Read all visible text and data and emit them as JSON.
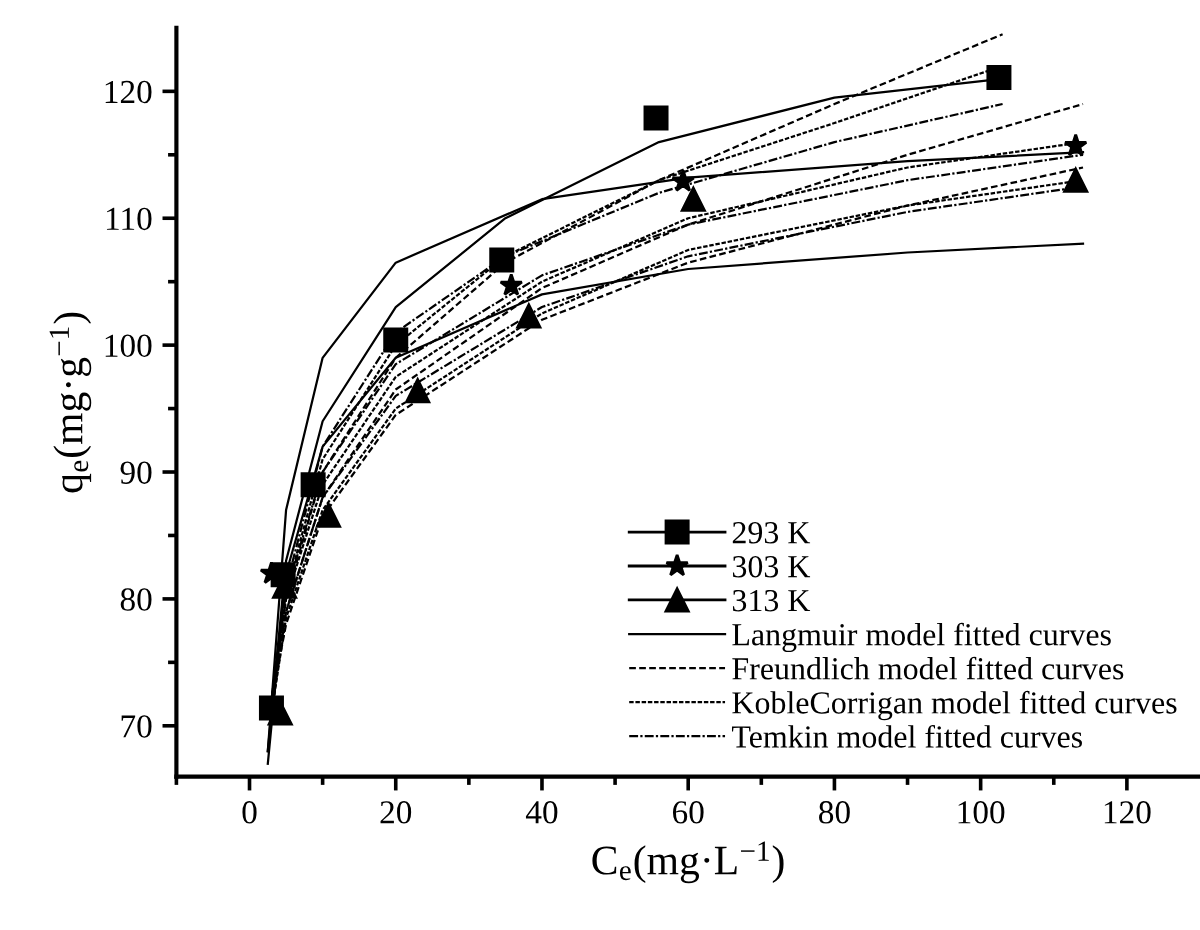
{
  "chart_data": {
    "type": "scatter",
    "xlabel": "C$_{e}$(mg·L$^{−1}$)",
    "ylabel": "q$_{e}$(mg·g$^{−1}$)",
    "xlim": [
      -10,
      130
    ],
    "ylim": [
      66,
      125
    ],
    "xticks": [
      {
        "value": -10,
        "label": null
      },
      0,
      {
        "value": 10,
        "label": null
      },
      20,
      {
        "value": 30,
        "label": null
      },
      40,
      {
        "value": 50,
        "label": null
      },
      60,
      {
        "value": 70,
        "label": null
      },
      80,
      {
        "value": 90,
        "label": null
      },
      100,
      {
        "value": 110,
        "label": null
      },
      120
    ],
    "yticks": [
      70,
      {
        "value": 75,
        "label": null
      },
      80,
      {
        "value": 85,
        "label": null
      },
      90,
      {
        "value": 95,
        "label": null
      },
      100,
      {
        "value": 105,
        "label": null
      },
      110,
      {
        "value": 115,
        "label": null
      },
      120
    ],
    "grid": false,
    "legend": "lower right",
    "series": [
      {
        "name": "293 K",
        "marker": "square",
        "color": "#000000",
        "x": [
          3,
          4.6,
          8.7,
          20,
          34.5,
          55.6,
          102.5
        ],
        "values": [
          71.4,
          81.9,
          89,
          100.4,
          106.7,
          117.9,
          121.1
        ]
      },
      {
        "name": "303 K",
        "marker": "star",
        "color": "#000000",
        "x": [
          3,
          35.8,
          59.3,
          113
        ],
        "values": [
          82,
          104.7,
          112.9,
          115.7
        ]
      },
      {
        "name": "313 K",
        "marker": "triangle",
        "color": "#000000",
        "x": [
          4.2,
          4.8,
          10.8,
          23,
          38.2,
          60.7,
          113
        ],
        "values": [
          71,
          81,
          86.6,
          96.4,
          102.3,
          111.5,
          113
        ]
      },
      {
        "name": "Langmuir model fitted curves",
        "type": "line",
        "line_style": "solid",
        "color": "#000000",
        "x": [
          2.5,
          5,
          10,
          20,
          35,
          56,
          80,
          103
        ],
        "values": [
          68,
          83,
          94,
          103,
          110,
          116,
          119.5,
          121
        ]
      },
      {
        "type": "line",
        "line_style": "solid",
        "color": "#000000",
        "x": [
          2.5,
          5,
          10,
          20,
          40,
          60,
          90,
          114
        ],
        "values": [
          68,
          87,
          99,
          106.5,
          111.5,
          113.2,
          114.5,
          115.2
        ]
      },
      {
        "type": "line",
        "line_style": "solid",
        "color": "#000000",
        "x": [
          2.5,
          5,
          10,
          20,
          40,
          60,
          90,
          114
        ],
        "values": [
          67,
          82,
          92,
          99,
          104,
          106,
          107.3,
          108
        ]
      },
      {
        "name": "Freundlich model fitted curves",
        "type": "line",
        "line_style": "dashed",
        "color": "#000000",
        "x": [
          3,
          5,
          10,
          20,
          35,
          56,
          80,
          103
        ],
        "values": [
          72,
          80,
          90,
          99,
          106.5,
          113,
          119,
          124.5
        ]
      },
      {
        "type": "line",
        "line_style": "dashed",
        "color": "#000000",
        "x": [
          3,
          5,
          10,
          20,
          40,
          60,
          90,
          114
        ],
        "values": [
          72,
          79,
          88,
          96.5,
          104.5,
          109.5,
          115,
          119
        ]
      },
      {
        "type": "line",
        "line_style": "dashed",
        "color": "#000000",
        "x": [
          3,
          5,
          10,
          20,
          40,
          60,
          90,
          114
        ],
        "values": [
          72,
          78,
          86.5,
          94.5,
          102,
          106.5,
          111,
          114
        ]
      },
      {
        "name": "KobleCorrigan model fitted curves",
        "type": "line",
        "line_style": "densely dashed",
        "color": "#000000",
        "x": [
          3,
          5,
          10,
          20,
          35,
          56,
          80,
          103
        ],
        "values": [
          72,
          80.5,
          91,
          100,
          107,
          113,
          117.5,
          122
        ]
      },
      {
        "type": "line",
        "line_style": "densely dashed",
        "color": "#000000",
        "x": [
          3,
          5,
          10,
          20,
          40,
          60,
          90,
          114
        ],
        "values": [
          72,
          80,
          89,
          97.5,
          105,
          110,
          114,
          116
        ]
      },
      {
        "type": "line",
        "line_style": "densely dashed",
        "color": "#000000",
        "x": [
          3,
          5,
          10,
          20,
          40,
          60,
          90,
          114
        ],
        "values": [
          71,
          78.5,
          87,
          95,
          102.5,
          107.5,
          111,
          113
        ]
      },
      {
        "name": "Temkin model fitted curves",
        "type": "line",
        "line_style": "dashdot",
        "color": "#000000",
        "x": [
          3,
          5,
          10,
          20,
          35,
          56,
          80,
          103
        ],
        "values": [
          72,
          81,
          92,
          101,
          107,
          112,
          116,
          119
        ]
      },
      {
        "type": "line",
        "line_style": "dashdot",
        "color": "#000000",
        "x": [
          3,
          5,
          10,
          20,
          40,
          60,
          90,
          114
        ],
        "values": [
          72,
          80.5,
          90,
          98.5,
          105.5,
          109.5,
          113,
          115
        ]
      },
      {
        "type": "line",
        "line_style": "dashdot",
        "color": "#000000",
        "x": [
          3,
          5,
          10,
          20,
          40,
          60,
          90,
          114
        ],
        "values": [
          71,
          79,
          88,
          96,
          103,
          107,
          110.5,
          112.5
        ]
      }
    ]
  }
}
